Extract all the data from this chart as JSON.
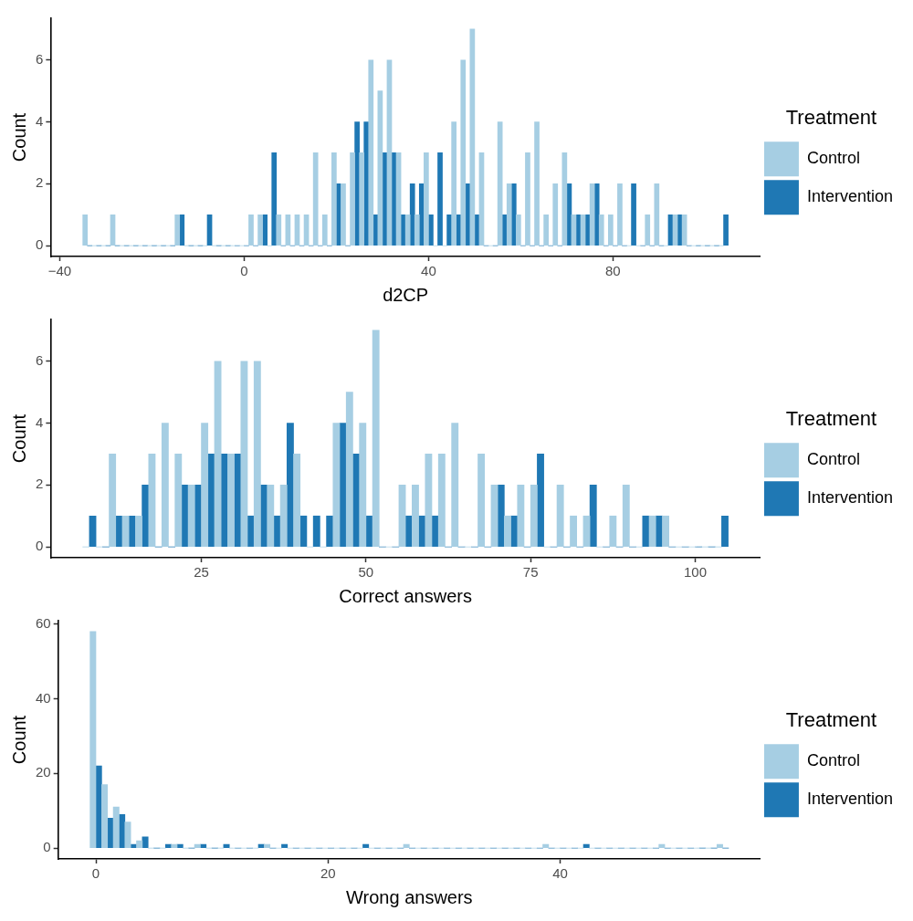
{
  "chart_data": [
    {
      "type": "histogram",
      "xlabel": "d2CP",
      "ylabel": "Count",
      "legend_title": "Treatment",
      "legend": "right",
      "grid": false,
      "bins": [
        -35,
        -33,
        -31,
        -29,
        -27,
        -25,
        -23,
        -21,
        -19,
        -17,
        -15,
        -13,
        -11,
        -9,
        -7,
        -5,
        -3,
        -1,
        1,
        3,
        5,
        7,
        9,
        11,
        13,
        15,
        17,
        19,
        21,
        23,
        25,
        27,
        29,
        31,
        33,
        35,
        37,
        39,
        41,
        43,
        45,
        47,
        49,
        51,
        53,
        55,
        57,
        59,
        61,
        63,
        65,
        67,
        69,
        71,
        73,
        75,
        77,
        79,
        81,
        83,
        85,
        87,
        89,
        91,
        93,
        95,
        97,
        99,
        101,
        103,
        105
      ],
      "series": [
        {
          "name": "Control",
          "color": "#a6cee3",
          "values": [
            1,
            0,
            0,
            1,
            0,
            0,
            0,
            0,
            0,
            0,
            1,
            0,
            0,
            0,
            0,
            0,
            0,
            0,
            1,
            1,
            0,
            1,
            1,
            1,
            1,
            3,
            1,
            3,
            2,
            3,
            3,
            6,
            5,
            6,
            3,
            1,
            1,
            3,
            0,
            0,
            4,
            6,
            7,
            3,
            0,
            4,
            2,
            1,
            3,
            4,
            1,
            2,
            3,
            1,
            1,
            2,
            1,
            1,
            2,
            0,
            0,
            1,
            2,
            0,
            1,
            1,
            0,
            0,
            0,
            0
          ]
        },
        {
          "name": "Intervention",
          "color": "#1f78b4",
          "values": [
            0,
            0,
            0,
            0,
            0,
            0,
            0,
            0,
            0,
            0,
            1,
            0,
            0,
            1,
            0,
            0,
            0,
            0,
            0,
            1,
            3,
            0,
            0,
            0,
            0,
            0,
            0,
            2,
            0,
            4,
            4,
            1,
            3,
            3,
            1,
            2,
            2,
            1,
            3,
            1,
            1,
            2,
            1,
            0,
            0,
            1,
            2,
            0,
            0,
            0,
            0,
            0,
            2,
            1,
            1,
            2,
            0,
            0,
            0,
            2,
            0,
            0,
            0,
            1,
            1,
            0,
            0,
            0,
            0,
            1
          ]
        }
      ],
      "xlim": [
        -42,
        112
      ],
      "xticks": [
        {
          "value": -40,
          "label": "−40"
        },
        0,
        40,
        80
      ],
      "ylim": [
        -0.35,
        7.35
      ],
      "yticks": [
        0,
        2,
        4,
        6
      ]
    },
    {
      "type": "histogram",
      "xlabel": "Correct answers",
      "ylabel": "Count",
      "legend_title": "Treatment",
      "legend": "right",
      "grid": false,
      "bins": [
        7,
        9,
        11,
        13,
        15,
        17,
        19,
        21,
        23,
        25,
        27,
        29,
        31,
        33,
        35,
        37,
        39,
        41,
        43,
        45,
        47,
        49,
        51,
        53,
        55,
        57,
        59,
        61,
        63,
        65,
        67,
        69,
        71,
        73,
        75,
        77,
        79,
        81,
        83,
        85,
        87,
        89,
        91,
        93,
        95,
        97,
        99,
        101,
        103,
        105
      ],
      "series": [
        {
          "name": "Control",
          "color": "#a6cee3",
          "values": [
            0,
            0,
            3,
            1,
            1,
            3,
            4,
            3,
            2,
            4,
            6,
            3,
            6,
            6,
            2,
            2,
            3,
            0,
            0,
            4,
            5,
            4,
            7,
            0,
            2,
            2,
            3,
            3,
            4,
            0,
            3,
            2,
            1,
            2,
            2,
            0,
            2,
            1,
            1,
            0,
            1,
            2,
            0,
            1,
            1,
            0,
            0,
            0,
            0
          ]
        },
        {
          "name": "Intervention",
          "color": "#1f78b4",
          "values": [
            1,
            0,
            1,
            1,
            2,
            0,
            0,
            2,
            2,
            3,
            3,
            3,
            1,
            2,
            1,
            4,
            1,
            1,
            1,
            4,
            3,
            1,
            0,
            0,
            1,
            1,
            1,
            0,
            0,
            0,
            0,
            2,
            1,
            0,
            3,
            0,
            0,
            0,
            2,
            0,
            0,
            0,
            1,
            1,
            0,
            0,
            0,
            0,
            1
          ]
        }
      ],
      "xlim": [
        2.1,
        109.9
      ],
      "xticks": [
        25,
        50,
        75,
        100
      ],
      "ylim": [
        -0.35,
        7.35
      ],
      "yticks": [
        0,
        2,
        4,
        6
      ]
    },
    {
      "type": "histogram",
      "xlabel": "Wrong answers",
      "ylabel": "Count",
      "legend_title": "Treatment",
      "legend": "right",
      "grid": false,
      "bins": [
        -0.5,
        0.5,
        1.5,
        2.5,
        3.5,
        4.5,
        5.5,
        6.5,
        7.5,
        8.5,
        9.5,
        10.5,
        11.5,
        12.5,
        13.5,
        14.5,
        15.5,
        16.5,
        17.5,
        18.5,
        19.5,
        20.5,
        21.5,
        22.5,
        23.5,
        24.5,
        25.5,
        26.5,
        27.5,
        28.5,
        29.5,
        30.5,
        31.5,
        32.5,
        33.5,
        34.5,
        35.5,
        36.5,
        37.5,
        38.5,
        39.5,
        40.5,
        41.5,
        42.5,
        43.5,
        44.5,
        45.5,
        46.5,
        47.5,
        48.5,
        49.5,
        50.5,
        51.5,
        52.5,
        53.5,
        54.5
      ],
      "series": [
        {
          "name": "Control",
          "color": "#a6cee3",
          "values": [
            58,
            17,
            11,
            7,
            2,
            0,
            0,
            1,
            0,
            1,
            0,
            0,
            0,
            0,
            0,
            1,
            0,
            0,
            0,
            0,
            0,
            0,
            0,
            0,
            0,
            0,
            0,
            1,
            0,
            0,
            0,
            0,
            0,
            0,
            0,
            0,
            0,
            0,
            0,
            1,
            0,
            0,
            0,
            0,
            0,
            0,
            0,
            0,
            0,
            1,
            0,
            0,
            0,
            0,
            1
          ]
        },
        {
          "name": "Intervention",
          "color": "#1f78b4",
          "values": [
            22,
            8,
            9,
            1,
            3,
            0,
            1,
            1,
            0,
            1,
            0,
            1,
            0,
            0,
            1,
            0,
            1,
            0,
            0,
            0,
            0,
            0,
            0,
            1,
            0,
            0,
            0,
            0,
            0,
            0,
            0,
            0,
            0,
            0,
            0,
            0,
            0,
            0,
            0,
            0,
            0,
            0,
            1,
            0,
            0,
            0,
            0,
            0,
            0,
            0,
            0,
            0,
            0,
            0,
            0
          ]
        }
      ],
      "xlim": [
        -3.25,
        57.25
      ],
      "xticks": [
        0,
        20,
        40
      ],
      "ylim": [
        -2.9,
        60.9
      ],
      "yticks": [
        0,
        20,
        40,
        60
      ]
    }
  ]
}
